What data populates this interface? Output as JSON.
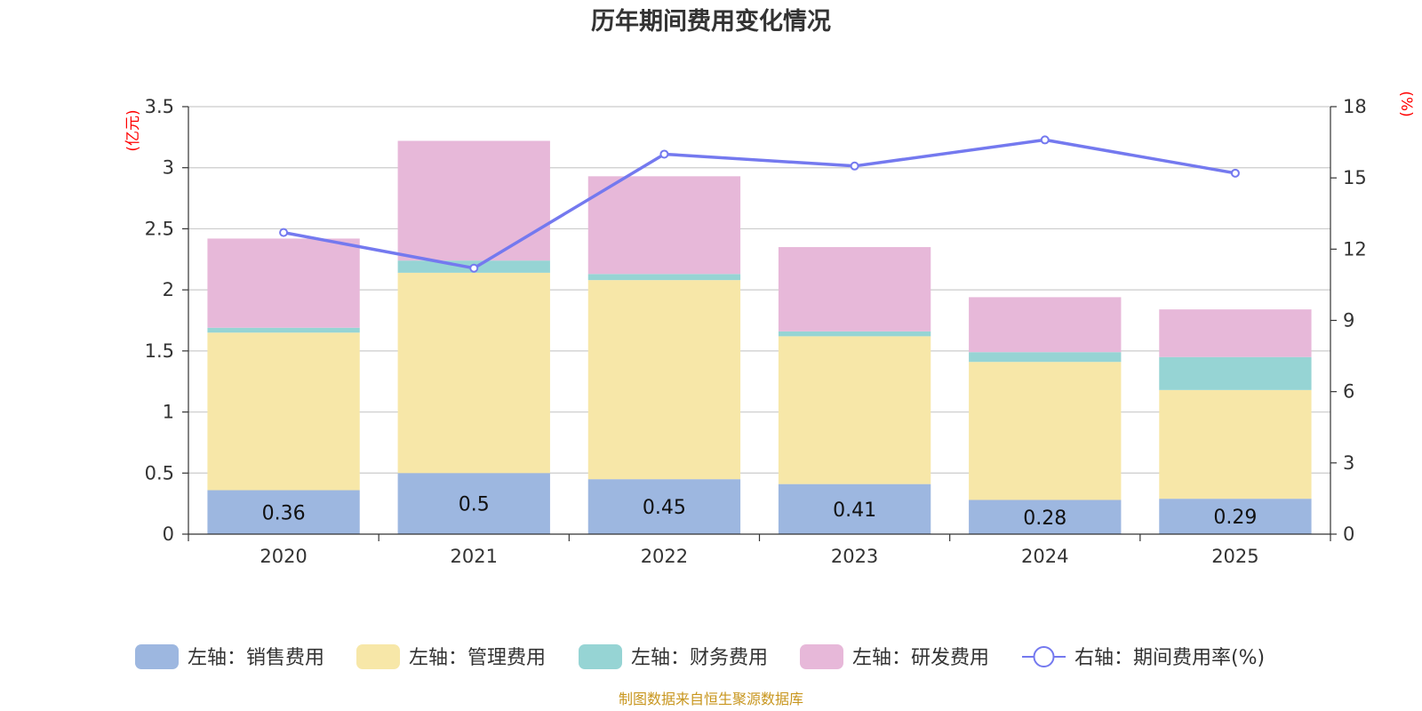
{
  "chart_data": {
    "type": "bar",
    "stacked": true,
    "title": "历年期间费用变化情况",
    "categories": [
      "2020",
      "2021",
      "2022",
      "2023",
      "2024",
      "2025"
    ],
    "y_left": {
      "unit": "(亿元)",
      "range": [
        0,
        3.5
      ],
      "ticks": [
        "0",
        "0.5",
        "1",
        "1.5",
        "2",
        "2.5",
        "3",
        "3.5"
      ]
    },
    "y_right": {
      "unit": "(%)",
      "range": [
        0,
        18
      ],
      "ticks": [
        "0",
        "3",
        "6",
        "9",
        "12",
        "15",
        "18"
      ]
    },
    "grid": true,
    "series": [
      {
        "name": "左轴：销售费用",
        "axis": "left",
        "type": "bar",
        "color": "#9db7e0",
        "values": [
          0.36,
          0.5,
          0.45,
          0.41,
          0.28,
          0.29
        ],
        "labels": [
          "0.36",
          "0.5",
          "0.45",
          "0.41",
          "0.28",
          "0.29"
        ]
      },
      {
        "name": "左轴：管理费用",
        "axis": "left",
        "type": "bar",
        "color": "#f7e7a8",
        "values": [
          1.29,
          1.64,
          1.63,
          1.21,
          1.13,
          0.89
        ]
      },
      {
        "name": "左轴：财务费用",
        "axis": "left",
        "type": "bar",
        "color": "#96d4d4",
        "values": [
          0.04,
          0.1,
          0.05,
          0.04,
          0.08,
          0.27
        ]
      },
      {
        "name": "左轴：研发费用",
        "axis": "left",
        "type": "bar",
        "color": "#e7b8d9",
        "values": [
          0.73,
          0.98,
          0.8,
          0.69,
          0.45,
          0.39
        ]
      },
      {
        "name": "右轴：期间费用率(%)",
        "axis": "right",
        "type": "line",
        "color": "#7479ef",
        "values": [
          12.7,
          11.2,
          16.0,
          15.5,
          16.6,
          15.2
        ]
      }
    ],
    "legend_position": "bottom"
  },
  "source_note": "制图数据来自恒生聚源数据库"
}
